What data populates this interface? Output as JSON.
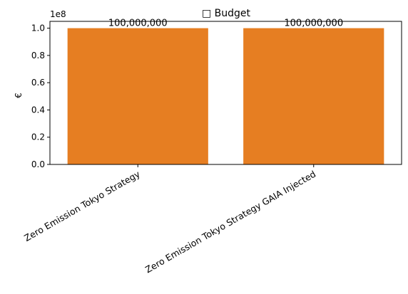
{
  "colors": {
    "bar": "#e67e22",
    "axis": "#000000",
    "background": "#ffffff"
  },
  "chart_data": {
    "type": "bar",
    "title": "□ Budget",
    "xlabel": "",
    "ylabel": "€",
    "y_offset_text": "1e8",
    "categories": [
      "Zero Emission Tokyo Strategy",
      "Zero Emission Tokyo Strategy GAIA Injected"
    ],
    "values": [
      100000000,
      100000000
    ],
    "data_labels": [
      "100,000,000",
      "100,000,000"
    ],
    "ylim": [
      0,
      105000000
    ],
    "y_ticks": [
      0,
      20000000,
      40000000,
      60000000,
      80000000,
      100000000
    ],
    "y_tick_labels": [
      "0.0",
      "0.2",
      "0.4",
      "0.6",
      "0.8",
      "1.0"
    ],
    "grid": false,
    "legend": "none"
  }
}
